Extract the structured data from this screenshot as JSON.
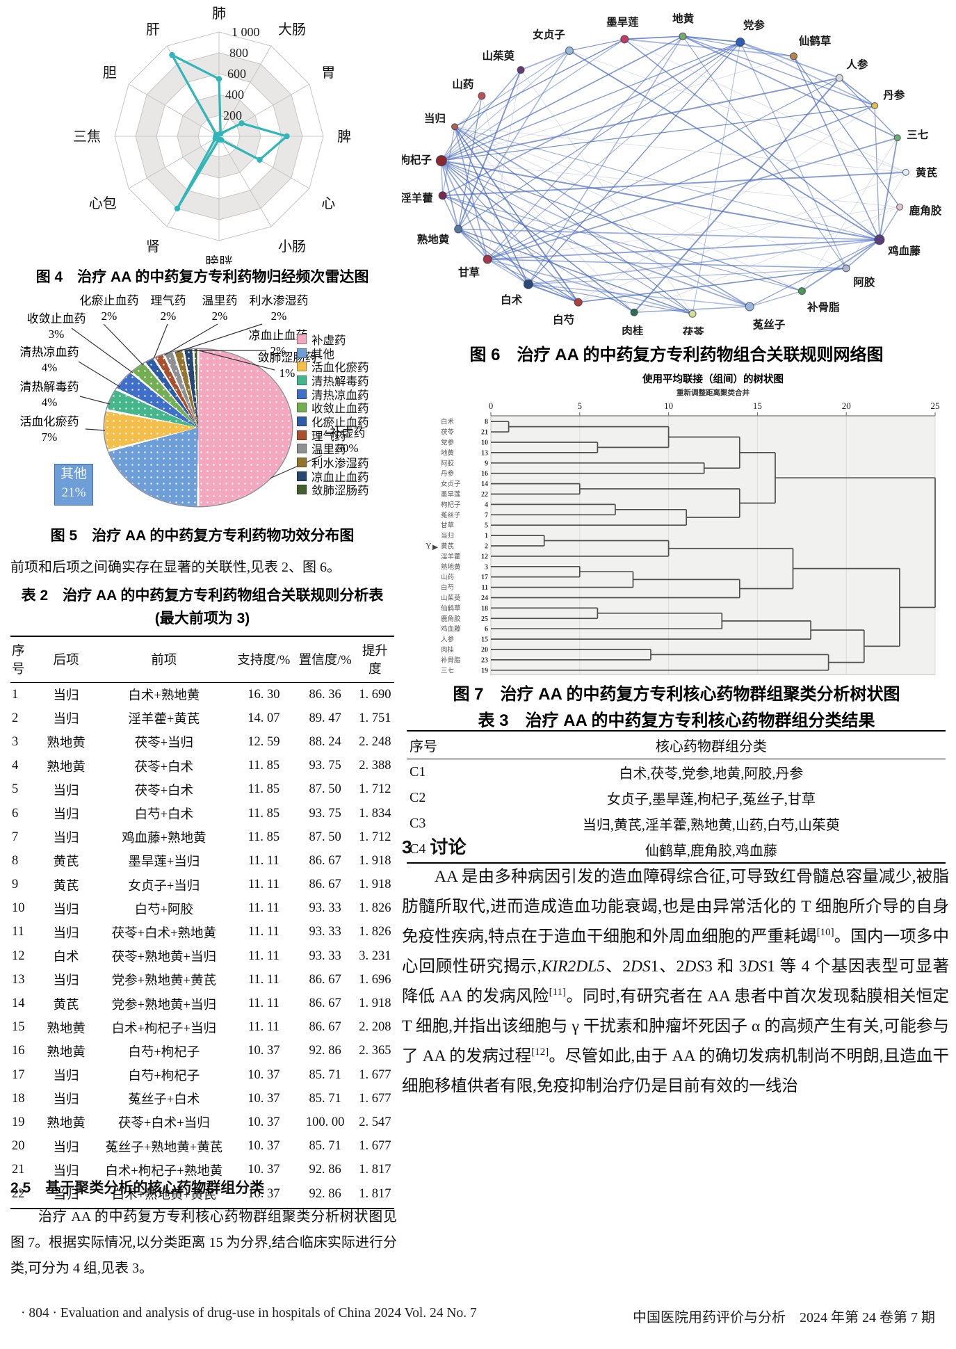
{
  "page": {
    "footer_left": "· 804 ·  Evaluation and analysis of drug-use in hospitals of China 2024  Vol. 24  No. 7",
    "footer_right": "中国医院用药评价与分析　2024 年第 24 卷第 7 期"
  },
  "figure4": {
    "caption": "图 4　治疗 AA 的中药复方专利药物归经频次雷达图",
    "chart_data": {
      "type": "radar",
      "axes": [
        "肺",
        "大肠",
        "胃",
        "脾",
        "心",
        "小肠",
        "膀胱",
        "肾",
        "心包",
        "三焦",
        "胆",
        "肝"
      ],
      "values": [
        550,
        30,
        250,
        650,
        450,
        40,
        30,
        800,
        40,
        30,
        30,
        900
      ],
      "max": 1000,
      "ticks": [
        "200",
        "400",
        "600",
        "800",
        "1 000"
      ],
      "line_color": "#2eb6b8",
      "band_gray": "#e9e6e6",
      "grid_color": "#c8c5c5"
    }
  },
  "figure5": {
    "caption": "图 5　治疗 AA 的中药复方专利药物功效分布图",
    "chart_data": {
      "type": "pie",
      "slices": [
        {
          "label": "补虚药",
          "pct": 50,
          "color": "#f4a8c0"
        },
        {
          "label": "其他",
          "pct": 21,
          "color": "#6e9ed8"
        },
        {
          "label": "活血化瘀药",
          "pct": 7,
          "color": "#f3bf4a"
        },
        {
          "label": "清热解毒药",
          "pct": 4,
          "color": "#45b58c"
        },
        {
          "label": "清热凉血药",
          "pct": 4,
          "color": "#3f6fc8"
        },
        {
          "label": "收敛止血药",
          "pct": 3,
          "color": "#73ae52"
        },
        {
          "label": "化瘀止血药",
          "pct": 2,
          "color": "#2e5ca8"
        },
        {
          "label": "理气药",
          "pct": 2,
          "color": "#a9502e"
        },
        {
          "label": "温里药",
          "pct": 2,
          "color": "#8e9094"
        },
        {
          "label": "利水渗湿药",
          "pct": 2,
          "color": "#93742f"
        },
        {
          "label": "凉血止血药",
          "pct": 2,
          "color": "#274873"
        },
        {
          "label": "敛肺涩肠药",
          "pct": 1,
          "color": "#41602e"
        }
      ],
      "legend_position": "right"
    }
  },
  "text_blocks": {
    "assoc_intro": "前项和后项之间确实存在显著的关联性,见表 2、图 6。",
    "section25_title": "2.5　基于聚类分析的核心药物群组分类",
    "section25_body": "治疗 AA 的中药复方专利核心药物群组聚类分析树状图见图 7。根据实际情况,以分类距离 15 为分界,结合临床实际进行分类,可分为 4 组,见表 3。",
    "discussion_title": "3　讨论",
    "discussion_segments": [
      {
        "t": "AA 是由多种病因引发的造血障碍综合征,可导致红骨髓总容量减少,被脂肪髓所取代,进而造成造血功能衰竭,也是由异常活化的 T 细胞所介导的自身免疫性疾病,特点在于造血干细胞和外周血细胞的严重耗竭"
      },
      {
        "sup": "[10]"
      },
      {
        "t": "。国内一项多中心回顾性研究揭示,"
      },
      {
        "i": "KIR2DL5"
      },
      {
        "t": "、2"
      },
      {
        "i": "DS"
      },
      {
        "t": "1、2"
      },
      {
        "i": "DS"
      },
      {
        "t": "3 和 3"
      },
      {
        "i": "DS"
      },
      {
        "t": "1 等 4 个基因表型可显著降低 AA 的发病风险"
      },
      {
        "sup": "[11]"
      },
      {
        "t": "。同时,有研究者在 AA 患者中首次发现黏膜相关恒定 T 细胞,并指出该细胞与 γ 干扰素和肿瘤坏死因子 α 的高频产生有关,可能参与了 AA 的发病过程"
      },
      {
        "sup": "[12]"
      },
      {
        "t": "。尽管如此,由于 AA 的确切发病机制尚不明朗,且造血干细胞移植供者有限,免疫抑制治疗仍是目前有效的一线治"
      }
    ]
  },
  "table2": {
    "caption_line1": "表 2　治疗 AA 的中药复方专利药物组合关联规则分析表",
    "caption_line2": "(最大前项为 3)",
    "headers": [
      "序号",
      "后项",
      "前项",
      "支持度/%",
      "置信度/%",
      "提升度"
    ],
    "rows": [
      [
        "1",
        "当归",
        "白术+熟地黄",
        "16. 30",
        "86. 36",
        "1. 690"
      ],
      [
        "2",
        "当归",
        "淫羊藿+黄芪",
        "14. 07",
        "89. 47",
        "1. 751"
      ],
      [
        "3",
        "熟地黄",
        "茯苓+当归",
        "12. 59",
        "88. 24",
        "2. 248"
      ],
      [
        "4",
        "熟地黄",
        "茯苓+白术",
        "11. 85",
        "93. 75",
        "2. 388"
      ],
      [
        "5",
        "当归",
        "茯苓+白术",
        "11. 85",
        "87. 50",
        "1. 712"
      ],
      [
        "6",
        "当归",
        "白芍+白术",
        "11. 85",
        "93. 75",
        "1. 834"
      ],
      [
        "7",
        "当归",
        "鸡血藤+熟地黄",
        "11. 85",
        "87. 50",
        "1. 712"
      ],
      [
        "8",
        "黄芪",
        "墨旱莲+当归",
        "11. 11",
        "86. 67",
        "1. 918"
      ],
      [
        "9",
        "黄芪",
        "女贞子+当归",
        "11. 11",
        "86. 67",
        "1. 918"
      ],
      [
        "10",
        "当归",
        "白芍+阿胶",
        "11. 11",
        "93. 33",
        "1. 826"
      ],
      [
        "11",
        "当归",
        "茯苓+白术+熟地黄",
        "11. 11",
        "93. 33",
        "1. 826"
      ],
      [
        "12",
        "白术",
        "茯苓+熟地黄+当归",
        "11. 11",
        "93. 33",
        "3. 231"
      ],
      [
        "13",
        "当归",
        "党参+熟地黄+黄芪",
        "11. 11",
        "86. 67",
        "1. 696"
      ],
      [
        "14",
        "黄芪",
        "党参+熟地黄+当归",
        "11. 11",
        "86. 67",
        "1. 918"
      ],
      [
        "15",
        "熟地黄",
        "白术+枸杞子+当归",
        "11. 11",
        "86. 67",
        "2. 208"
      ],
      [
        "16",
        "熟地黄",
        "白芍+枸杞子",
        "10. 37",
        "92. 86",
        "2. 365"
      ],
      [
        "17",
        "当归",
        "白芍+枸杞子",
        "10. 37",
        "85. 71",
        "1. 677"
      ],
      [
        "18",
        "当归",
        "菟丝子+白术",
        "10. 37",
        "85. 71",
        "1. 677"
      ],
      [
        "19",
        "熟地黄",
        "茯苓+白术+当归",
        "10. 37",
        "100. 00",
        "2. 547"
      ],
      [
        "20",
        "当归",
        "菟丝子+熟地黄+黄芪",
        "10. 37",
        "85. 71",
        "1. 677"
      ],
      [
        "21",
        "当归",
        "白术+枸杞子+熟地黄",
        "10. 37",
        "92. 86",
        "1. 817"
      ],
      [
        "22",
        "当归",
        "白术+熟地黄+黄芪",
        "10. 37",
        "92. 86",
        "1. 817"
      ]
    ]
  },
  "figure6": {
    "caption": "图 6　治疗 AA 的中药复方专利药物组合关联规则网络图",
    "chart_data": {
      "type": "network",
      "edge_colors": {
        "strong": "#4a6cc0",
        "weak": "#aab4cc"
      },
      "nodes": [
        {
          "name": "墨旱莲",
          "color": "#bf3f63",
          "r": 5.5
        },
        {
          "name": "地黄",
          "color": "#79a96a",
          "r": 5
        },
        {
          "name": "党参",
          "color": "#2e5eb2",
          "r": 6
        },
        {
          "name": "仙鹤草",
          "color": "#b5854a",
          "r": 5
        },
        {
          "name": "人参",
          "color": "#d9d9d9",
          "r": 5
        },
        {
          "name": "丹参",
          "color": "#dfc052",
          "r": 4.5
        },
        {
          "name": "三七",
          "color": "#6fae6f",
          "r": 4.5
        },
        {
          "name": "黄芪",
          "color": "#e8eef5",
          "r": 4.5
        },
        {
          "name": "鹿角胶",
          "color": "#e3c6cb",
          "r": 4.5
        },
        {
          "name": "鸡血藤",
          "color": "#5a3e7a",
          "r": 7
        },
        {
          "name": "阿胶",
          "color": "#a9b9d1",
          "r": 5
        },
        {
          "name": "补骨脂",
          "color": "#4a9a5a",
          "r": 5
        },
        {
          "name": "菟丝子",
          "color": "#9ab8dd",
          "r": 6
        },
        {
          "name": "茯苓",
          "color": "#d8dc9a",
          "r": 5
        },
        {
          "name": "肉桂",
          "color": "#2f6e4f",
          "r": 5
        },
        {
          "name": "白芍",
          "color": "#b04038",
          "r": 5.5
        },
        {
          "name": "白术",
          "color": "#2c4a78",
          "r": 6.5
        },
        {
          "name": "甘草",
          "color": "#a03848",
          "r": 6
        },
        {
          "name": "熟地黄",
          "color": "#5878a0",
          "r": 5.5
        },
        {
          "name": "淫羊藿",
          "color": "#7a2a52",
          "r": 5.5
        },
        {
          "name": "枸杞子",
          "color": "#8a2830",
          "r": 7.5
        },
        {
          "name": "当归",
          "color": "#b06050",
          "r": 4.5
        },
        {
          "name": "山药",
          "color": "#c05050",
          "r": 5
        },
        {
          "name": "山茱萸",
          "color": "#6a3a78",
          "r": 5
        },
        {
          "name": "女贞子",
          "color": "#98b8d8",
          "r": 5.5
        }
      ],
      "edges": [
        [
          20,
          24,
          2
        ],
        [
          20,
          0,
          2
        ],
        [
          20,
          12,
          2
        ],
        [
          20,
          17,
          2
        ],
        [
          20,
          22,
          2
        ],
        [
          20,
          23,
          2
        ],
        [
          20,
          18,
          2
        ],
        [
          20,
          19,
          2
        ],
        [
          20,
          15,
          2
        ],
        [
          20,
          16,
          2
        ],
        [
          20,
          13,
          2
        ],
        [
          20,
          2,
          2
        ],
        [
          20,
          1,
          2
        ],
        [
          20,
          9,
          2
        ],
        [
          20,
          11,
          2
        ],
        [
          20,
          14,
          2
        ],
        [
          20,
          4,
          2
        ],
        [
          20,
          5,
          2
        ],
        [
          17,
          16,
          2
        ],
        [
          17,
          13,
          2
        ],
        [
          17,
          2,
          2
        ],
        [
          17,
          1,
          2
        ],
        [
          17,
          21,
          2
        ],
        [
          17,
          18,
          2
        ],
        [
          17,
          15,
          2
        ],
        [
          17,
          10,
          2
        ],
        [
          17,
          9,
          2
        ],
        [
          17,
          4,
          2
        ],
        [
          17,
          5,
          2
        ],
        [
          17,
          6,
          2
        ],
        [
          16,
          13,
          2
        ],
        [
          16,
          18,
          2
        ],
        [
          16,
          21,
          2
        ],
        [
          16,
          15,
          2
        ],
        [
          16,
          2,
          2
        ],
        [
          16,
          12,
          2
        ],
        [
          16,
          9,
          2
        ],
        [
          16,
          10,
          2
        ],
        [
          16,
          1,
          2
        ],
        [
          9,
          18,
          2
        ],
        [
          9,
          21,
          2
        ],
        [
          9,
          8,
          2
        ],
        [
          9,
          10,
          2
        ],
        [
          9,
          11,
          2
        ],
        [
          9,
          12,
          2
        ],
        [
          9,
          3,
          2
        ],
        [
          9,
          6,
          2
        ],
        [
          9,
          5,
          2
        ],
        [
          9,
          0,
          2
        ],
        [
          9,
          24,
          2
        ],
        [
          0,
          24,
          2
        ],
        [
          0,
          21,
          2
        ],
        [
          0,
          1,
          2
        ],
        [
          0,
          3,
          2
        ],
        [
          24,
          21,
          2
        ],
        [
          24,
          18,
          2
        ],
        [
          24,
          23,
          2
        ],
        [
          19,
          21,
          2
        ],
        [
          19,
          18,
          2
        ],
        [
          19,
          12,
          2
        ],
        [
          19,
          11,
          2
        ],
        [
          19,
          14,
          2
        ],
        [
          19,
          2,
          2
        ],
        [
          19,
          7,
          2
        ],
        [
          18,
          22,
          2
        ],
        [
          18,
          15,
          2
        ],
        [
          18,
          23,
          2
        ],
        [
          18,
          2,
          2
        ],
        [
          18,
          13,
          2
        ],
        [
          2,
          1,
          2
        ],
        [
          2,
          13,
          2
        ],
        [
          2,
          10,
          2
        ],
        [
          2,
          5,
          2
        ],
        [
          2,
          4,
          2
        ],
        [
          12,
          11,
          2
        ],
        [
          12,
          14,
          2
        ],
        [
          12,
          21,
          2
        ],
        [
          1,
          10,
          2
        ],
        [
          1,
          5,
          2
        ],
        [
          1,
          6,
          2
        ],
        [
          1,
          3,
          2
        ],
        [
          4,
          6,
          2
        ],
        [
          4,
          5,
          2
        ],
        [
          4,
          14,
          2
        ],
        [
          3,
          8,
          2
        ],
        [
          15,
          10,
          2
        ],
        [
          15,
          21,
          2
        ],
        [
          21,
          13,
          2
        ],
        [
          7,
          21,
          1
        ],
        [
          7,
          15,
          1
        ],
        [
          7,
          10,
          1
        ],
        [
          7,
          0,
          1
        ],
        [
          8,
          20,
          1
        ],
        [
          8,
          17,
          1
        ],
        [
          6,
          17,
          1
        ],
        [
          5,
          9,
          1
        ],
        [
          22,
          16,
          1
        ],
        [
          23,
          17,
          1
        ],
        [
          3,
          20,
          1
        ],
        [
          11,
          21,
          1
        ],
        [
          14,
          21,
          1
        ],
        [
          10,
          21,
          1
        ],
        [
          24,
          7,
          1
        ],
        [
          5,
          15,
          1
        ],
        [
          6,
          11,
          1
        ],
        [
          8,
          14,
          1
        ],
        [
          4,
          20,
          1
        ],
        [
          13,
          23,
          1
        ]
      ]
    }
  },
  "figure7": {
    "caption": "图 7　治疗 AA 的中药复方专利核心药物群组聚类分析树状图",
    "chart_data": {
      "type": "dendrogram",
      "title": "使用平均联接（组间）的树状图",
      "subtitle": "重新调整距离聚类合并",
      "y_axis_label": "Y",
      "x_ticks": [
        0,
        5,
        10,
        15,
        20,
        25
      ],
      "x_max": 25,
      "leaves": [
        {
          "label": "白术",
          "num": 8
        },
        {
          "label": "茯苓",
          "num": 21
        },
        {
          "label": "党参",
          "num": 10
        },
        {
          "label": "地黄",
          "num": 13
        },
        {
          "label": "阿胶",
          "num": 9
        },
        {
          "label": "丹参",
          "num": 16
        },
        {
          "label": "女贞子",
          "num": 14
        },
        {
          "label": "墨旱莲",
          "num": 22
        },
        {
          "label": "枸杞子",
          "num": 4
        },
        {
          "label": "菟丝子",
          "num": 7
        },
        {
          "label": "甘草",
          "num": 5
        },
        {
          "label": "当归",
          "num": 1
        },
        {
          "label": "黄芪",
          "num": 2
        },
        {
          "label": "淫羊藿",
          "num": 12
        },
        {
          "label": "熟地黄",
          "num": 3
        },
        {
          "label": "山药",
          "num": 17
        },
        {
          "label": "白芍",
          "num": 11
        },
        {
          "label": "山茱萸",
          "num": 24
        },
        {
          "label": "仙鹤草",
          "num": 18
        },
        {
          "label": "鹿角胶",
          "num": 25
        },
        {
          "label": "鸡血藤",
          "num": 6
        },
        {
          "label": "人参",
          "num": 15
        },
        {
          "label": "肉桂",
          "num": 20
        },
        {
          "label": "补骨脂",
          "num": 23
        },
        {
          "label": "三七",
          "num": 19
        }
      ],
      "merges": [
        [
          "L0",
          "L1",
          1
        ],
        [
          "L2",
          "L3",
          6
        ],
        [
          "C0",
          "C1",
          10
        ],
        [
          "L4",
          "L5",
          12
        ],
        [
          "C2",
          "C3",
          14
        ],
        [
          "L6",
          "L7",
          5
        ],
        [
          "L8",
          "L9",
          7
        ],
        [
          "C6",
          "L10",
          11
        ],
        [
          "C5",
          "C7",
          14
        ],
        [
          "C4",
          "C8",
          16
        ],
        [
          "L11",
          "L12",
          3
        ],
        [
          "C10",
          "L13",
          10
        ],
        [
          "L14",
          "L15",
          5
        ],
        [
          "C12",
          "L16",
          8
        ],
        [
          "C13",
          "L17",
          14
        ],
        [
          "C11",
          "C14",
          17
        ],
        [
          "L18",
          "L19",
          6
        ],
        [
          "C16",
          "L20",
          13
        ],
        [
          "C17",
          "L21",
          18
        ],
        [
          "L22",
          "L23",
          9
        ],
        [
          "C19",
          "L24",
          19
        ],
        [
          "C18",
          "C20",
          21
        ],
        [
          "C15",
          "C21",
          23
        ],
        [
          "C9",
          "C22",
          25
        ]
      ]
    }
  },
  "table3": {
    "caption": "表 3　治疗 AA 的中药复方专利核心药物群组分类结果",
    "headers": [
      "序号",
      "核心药物群组分类"
    ],
    "rows": [
      [
        "C1",
        "白术,茯苓,党参,地黄,阿胶,丹参"
      ],
      [
        "C2",
        "女贞子,墨旱莲,枸杞子,菟丝子,甘草"
      ],
      [
        "C3",
        "当归,黄芪,淫羊藿,熟地黄,山药,白芍,山茱萸"
      ],
      [
        "C4",
        "仙鹤草,鹿角胶,鸡血藤"
      ]
    ]
  }
}
